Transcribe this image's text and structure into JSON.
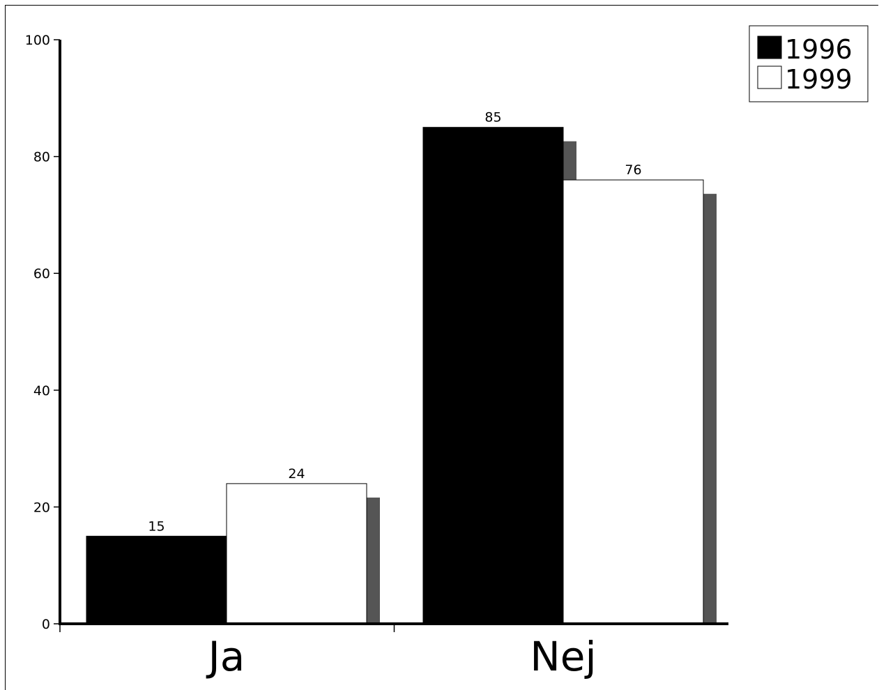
{
  "chart_data": {
    "type": "bar",
    "title": "",
    "xlabel": "",
    "ylabel": "",
    "categories": [
      "Ja",
      "Nej"
    ],
    "series": [
      {
        "name": "1996",
        "values": [
          15,
          85
        ],
        "color": "#000000"
      },
      {
        "name": "1999",
        "values": [
          24,
          76
        ],
        "color": "#ffffff"
      }
    ],
    "ylim": [
      0,
      100
    ],
    "yticks": [
      0,
      20,
      40,
      60,
      80,
      100
    ],
    "shadow_color": "#555555",
    "grid": false,
    "legend_position": "top-right",
    "data_labels": true
  }
}
